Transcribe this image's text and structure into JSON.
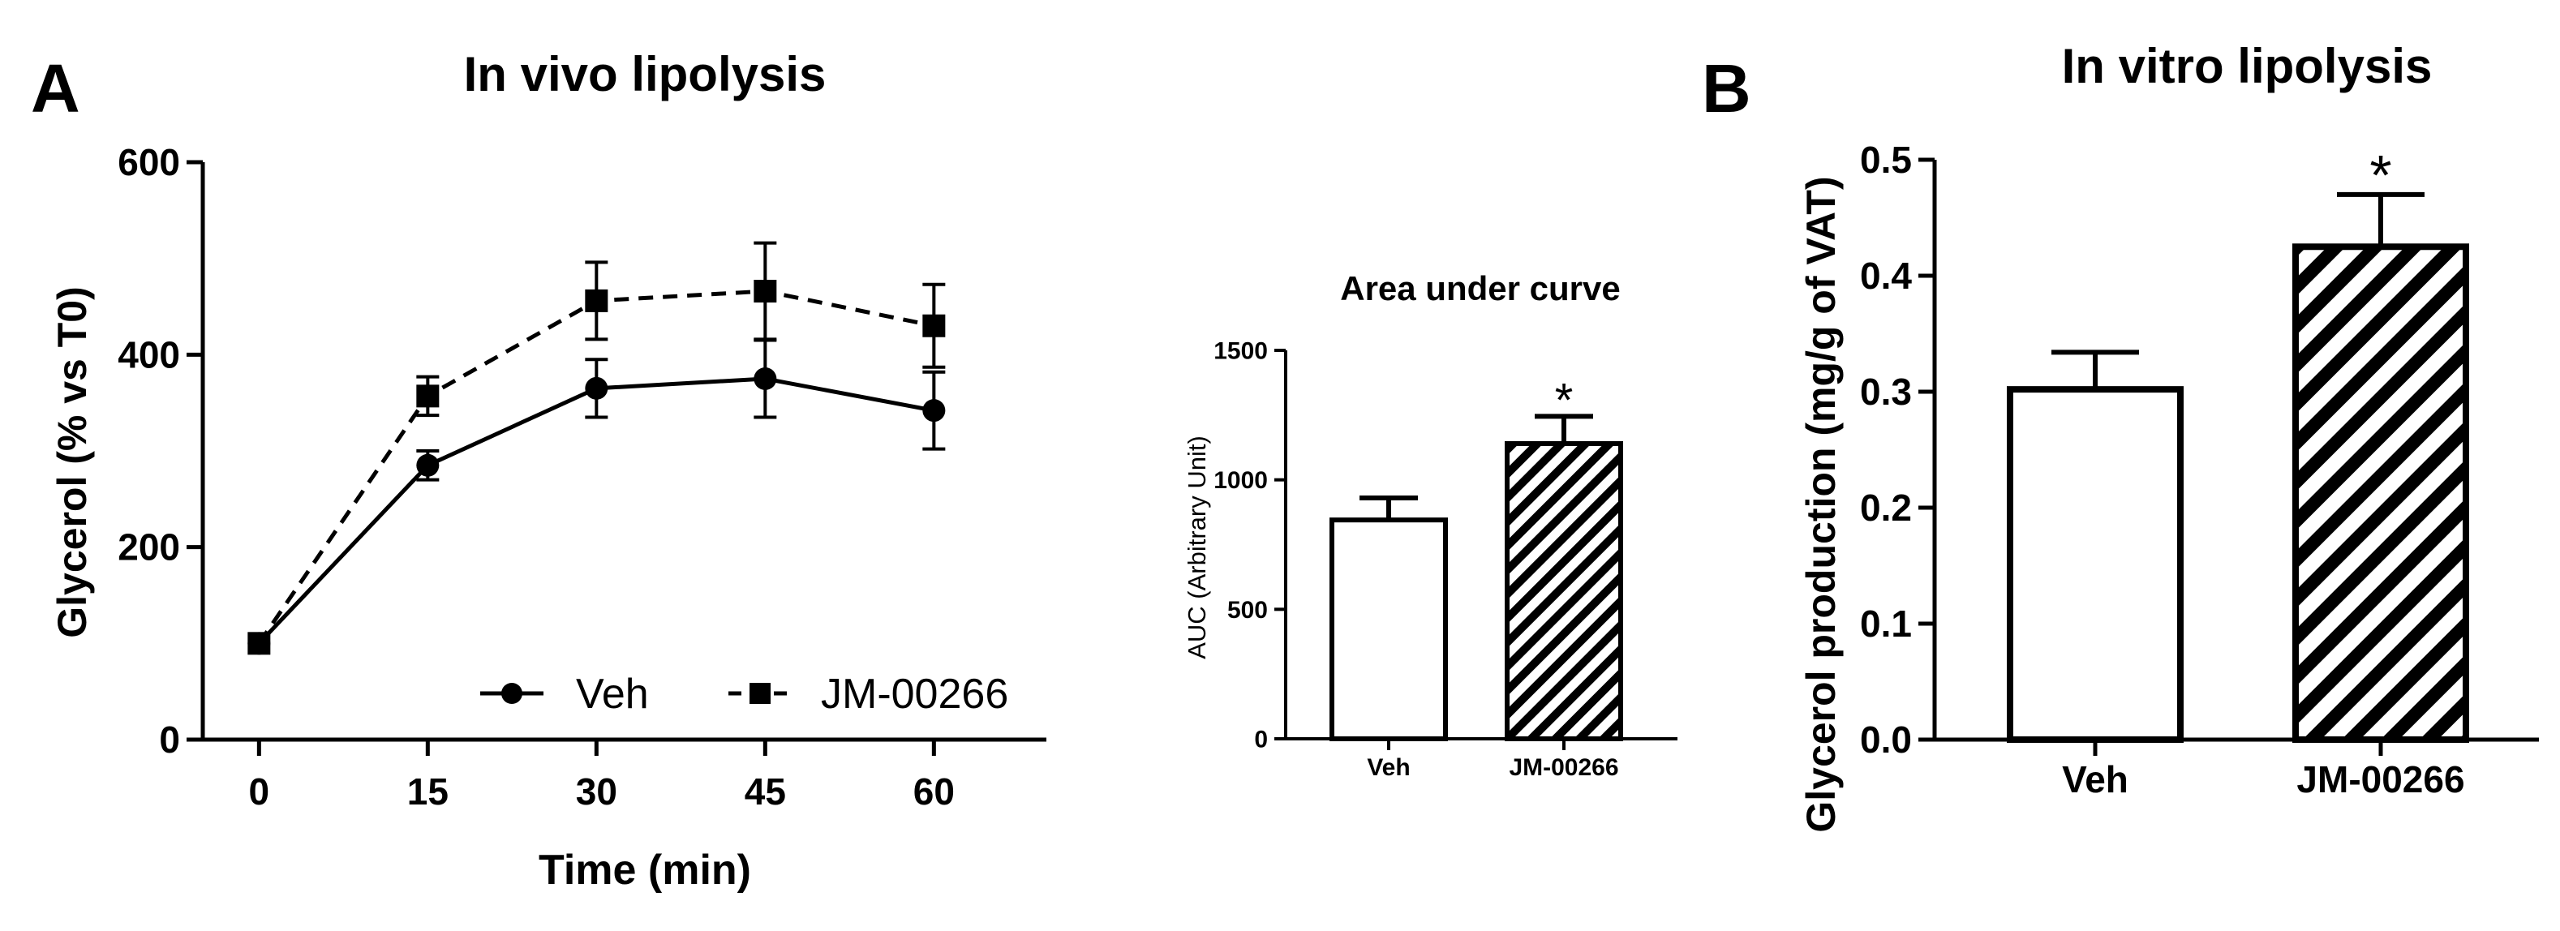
{
  "panels": {
    "a_label": "A",
    "b_label": "B"
  },
  "chart_data": [
    {
      "id": "in_vivo",
      "type": "line",
      "title": "In vivo lipolysis",
      "xlabel": "Time (min)",
      "ylabel": "Glycerol (% vs T0)",
      "x": [
        0,
        15,
        30,
        45,
        60
      ],
      "xlim": [
        -5,
        70
      ],
      "ylim": [
        0,
        600
      ],
      "yticks": [
        0,
        200,
        400,
        600
      ],
      "grid": false,
      "legend_position": "bottom-right",
      "series": [
        {
          "name": "Veh",
          "marker": "circle",
          "line": "solid",
          "values": [
            100,
            285,
            365,
            375,
            342
          ],
          "errors": [
            0,
            15,
            30,
            40,
            40
          ]
        },
        {
          "name": "JM-00266",
          "marker": "square",
          "line": "dashed",
          "values": [
            100,
            357,
            456,
            466,
            430
          ],
          "errors": [
            0,
            20,
            40,
            50,
            43
          ]
        }
      ]
    },
    {
      "id": "auc",
      "type": "bar",
      "title": "Area under curve",
      "xlabel": "",
      "ylabel": "AUC (Arbitrary Unit)",
      "categories": [
        "Veh",
        "JM-00266"
      ],
      "values": [
        845,
        1140
      ],
      "errors": [
        85,
        105
      ],
      "fills": [
        "open",
        "hatched"
      ],
      "significance": [
        "",
        "*"
      ],
      "ylim": [
        0,
        1500
      ],
      "yticks": [
        0,
        500,
        1000,
        1500
      ]
    },
    {
      "id": "in_vitro",
      "type": "bar",
      "title": "In vitro lipolysis",
      "xlabel": "",
      "ylabel": "Glycerol production (mg/g of VAT)",
      "categories": [
        "Veh",
        "JM-00266"
      ],
      "values": [
        0.302,
        0.425
      ],
      "errors": [
        0.032,
        0.045
      ],
      "fills": [
        "open",
        "hatched"
      ],
      "significance": [
        "",
        "*"
      ],
      "ylim": [
        0,
        0.5
      ],
      "yticks": [
        "0.0",
        "0.1",
        "0.2",
        "0.3",
        "0.4",
        "0.5"
      ]
    }
  ]
}
